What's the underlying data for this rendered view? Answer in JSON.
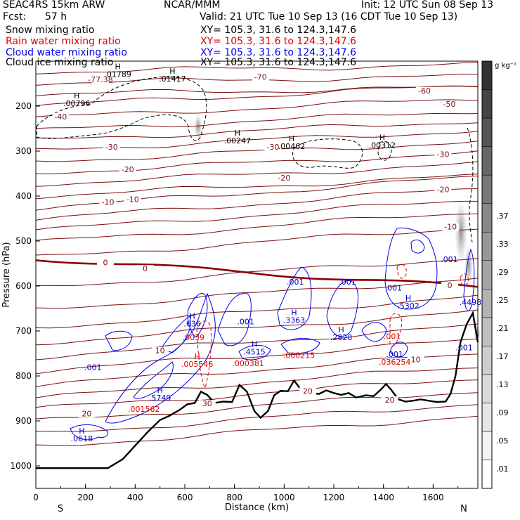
{
  "header": {
    "model": "SEAC4RS 15km ARW",
    "center": "NCAR/MMM",
    "init": "Init: 12 UTC Sun 08 Sep 13",
    "fcst_label": "Fcst:",
    "fcst_value": "57 h",
    "valid": "Valid: 21 UTC Tue 10 Sep 13 (16 CDT Tue 10 Sep 13)"
  },
  "legend": [
    {
      "name": "Snow mixing ratio",
      "xy": "XY= 105.3, 31.6 to 124.3,147.6",
      "color": "#000000"
    },
    {
      "name": "Rain water mixing ratio",
      "xy": "XY= 105.3, 31.6 to 124.3,147.6",
      "color": "#e00000"
    },
    {
      "name": "Cloud water mixing ratio",
      "xy": "XY= 105.3, 31.6 to 124.3,147.6",
      "color": "#0000ee"
    },
    {
      "name": "Cloud ice mixing ratio",
      "xy": "XY= 105.3, 31.6 to 124.3,147.6",
      "color": "#000000"
    }
  ],
  "chart_data": {
    "type": "cross-section",
    "xlabel": "Distance (km)",
    "ylabel": "Pressure (hPa)",
    "xlim": [
      0,
      1780
    ],
    "ylim": [
      1050,
      100
    ],
    "x_ticks": [
      0,
      200,
      400,
      600,
      800,
      1000,
      1200,
      1400,
      1600
    ],
    "y_ticks": [
      200,
      300,
      400,
      500,
      600,
      700,
      800,
      900,
      1000
    ],
    "end_labels": {
      "left": "S",
      "right": "N"
    },
    "colorbar": {
      "unit": "g kg⁻¹",
      "ticks": [
        ".01",
        ".05",
        ".09",
        ".13",
        ".17",
        ".21",
        ".25",
        ".29",
        ".33",
        ".37"
      ],
      "colors": [
        "#ffffff",
        "#f2f2f2",
        "#e6e6e6",
        "#dadada",
        "#cdcdcd",
        "#c0c0c0",
        "#b3b3b3",
        "#a5a5a5",
        "#979797",
        "#888888",
        "#787878",
        "#676767",
        "#555555",
        "#444444",
        "#333333"
      ]
    },
    "temperature_labels": [
      {
        "x": 260,
        "p": 145,
        "t": "-77.38"
      },
      {
        "x": 905,
        "p": 140,
        "t": "-70"
      },
      {
        "x": 1565,
        "p": 170,
        "t": "-60"
      },
      {
        "x": 1665,
        "p": 200,
        "t": "-50"
      },
      {
        "x": 100,
        "p": 228,
        "t": "-40"
      },
      {
        "x": 305,
        "p": 295,
        "t": "-30"
      },
      {
        "x": 955,
        "p": 295,
        "t": "-30"
      },
      {
        "x": 1640,
        "p": 312,
        "t": "-30"
      },
      {
        "x": 370,
        "p": 345,
        "t": "-20"
      },
      {
        "x": 1000,
        "p": 364,
        "t": "-20"
      },
      {
        "x": 1640,
        "p": 390,
        "t": "-20"
      },
      {
        "x": 290,
        "p": 418,
        "t": "-10"
      },
      {
        "x": 390,
        "p": 412,
        "t": "-10"
      },
      {
        "x": 1670,
        "p": 473,
        "t": "-10"
      },
      {
        "x": 280,
        "p": 552,
        "t": "0"
      },
      {
        "x": 440,
        "p": 566,
        "t": "0"
      },
      {
        "x": 1667,
        "p": 603,
        "t": "0"
      },
      {
        "x": 500,
        "p": 748,
        "t": "10"
      },
      {
        "x": 1530,
        "p": 768,
        "t": "10"
      },
      {
        "x": 205,
        "p": 888,
        "t": "20"
      },
      {
        "x": 1095,
        "p": 838,
        "t": "20"
      },
      {
        "x": 1425,
        "p": 858,
        "t": "20"
      },
      {
        "x": 690,
        "p": 866,
        "t": "30"
      }
    ],
    "snow_labels": [
      {
        "x": 330,
        "p": 135,
        "h": "H",
        "v": ".01789"
      },
      {
        "x": 550,
        "p": 145,
        "h": "H",
        "v": ".01417"
      },
      {
        "x": 165,
        "p": 200,
        "h": "H",
        "v": ".00796"
      },
      {
        "x": 812,
        "p": 283,
        "h": "H",
        "v": ".00247"
      },
      {
        "x": 1030,
        "p": 295,
        "h": "H",
        "v": ".00462"
      },
      {
        "x": 1395,
        "p": 293,
        "h": "H",
        "v": ".00312"
      }
    ],
    "cloud_water_labels": [
      {
        "x": 1665,
        "p": 547,
        "h": "",
        "v": ".001"
      },
      {
        "x": 1045,
        "p": 597,
        "h": "",
        "v": ".001"
      },
      {
        "x": 1255,
        "p": 597,
        "h": "",
        "v": ".001"
      },
      {
        "x": 1440,
        "p": 610,
        "h": "",
        "v": ".001"
      },
      {
        "x": 1500,
        "p": 650,
        "h": "H",
        "v": ".5302"
      },
      {
        "x": 1750,
        "p": 642,
        "h": "",
        "v": ".4498"
      },
      {
        "x": 630,
        "p": 690,
        "h": "H",
        "v": ".636"
      },
      {
        "x": 845,
        "p": 685,
        "h": "",
        "v": ".001"
      },
      {
        "x": 1040,
        "p": 682,
        "h": "H",
        "v": ".3363"
      },
      {
        "x": 1230,
        "p": 720,
        "h": "H",
        "v": ".2828"
      },
      {
        "x": 1725,
        "p": 743,
        "h": "",
        "v": ".001"
      },
      {
        "x": 880,
        "p": 752,
        "h": "H",
        "v": ".4515"
      },
      {
        "x": 1445,
        "p": 758,
        "h": "",
        "v": ".001"
      },
      {
        "x": 230,
        "p": 787,
        "h": "",
        "v": ".001"
      },
      {
        "x": 500,
        "p": 855,
        "h": "H",
        "v": ".5749"
      },
      {
        "x": 185,
        "p": 945,
        "h": "H",
        "v": ".0618"
      }
    ],
    "rain_labels": [
      {
        "x": 635,
        "p": 720,
        "h": "",
        "v": ".0039"
      },
      {
        "x": 650,
        "p": 780,
        "h": "H",
        "v": ".005546"
      },
      {
        "x": 855,
        "p": 778,
        "h": "",
        "v": ".000381"
      },
      {
        "x": 1060,
        "p": 760,
        "h": "",
        "v": ".000215"
      },
      {
        "x": 1435,
        "p": 718,
        "h": "",
        "v": ".001"
      },
      {
        "x": 1445,
        "p": 775,
        "h": "",
        "v": ".036254"
      },
      {
        "x": 435,
        "p": 880,
        "h": "",
        "v": ".001562"
      }
    ],
    "terrain_p": [
      [
        0,
        1005
      ],
      [
        290,
        1005
      ],
      [
        350,
        985
      ],
      [
        400,
        955
      ],
      [
        450,
        925
      ],
      [
        500,
        898
      ],
      [
        540,
        888
      ],
      [
        580,
        875
      ],
      [
        610,
        863
      ],
      [
        640,
        860
      ],
      [
        665,
        835
      ],
      [
        690,
        842
      ],
      [
        720,
        860
      ],
      [
        755,
        857
      ],
      [
        790,
        858
      ],
      [
        820,
        820
      ],
      [
        850,
        835
      ],
      [
        880,
        878
      ],
      [
        905,
        893
      ],
      [
        935,
        878
      ],
      [
        960,
        843
      ],
      [
        985,
        833
      ],
      [
        1015,
        834
      ],
      [
        1040,
        810
      ],
      [
        1075,
        836
      ],
      [
        1110,
        838
      ],
      [
        1140,
        840
      ],
      [
        1170,
        832
      ],
      [
        1200,
        838
      ],
      [
        1230,
        842
      ],
      [
        1260,
        838
      ],
      [
        1290,
        848
      ],
      [
        1330,
        843
      ],
      [
        1360,
        845
      ],
      [
        1390,
        830
      ],
      [
        1410,
        818
      ],
      [
        1430,
        830
      ],
      [
        1460,
        852
      ],
      [
        1490,
        857
      ],
      [
        1520,
        855
      ],
      [
        1550,
        852
      ],
      [
        1580,
        855
      ],
      [
        1615,
        858
      ],
      [
        1650,
        857
      ],
      [
        1670,
        840
      ],
      [
        1690,
        800
      ],
      [
        1710,
        725
      ],
      [
        1735,
        685
      ],
      [
        1760,
        660
      ],
      [
        1780,
        725
      ]
    ]
  }
}
